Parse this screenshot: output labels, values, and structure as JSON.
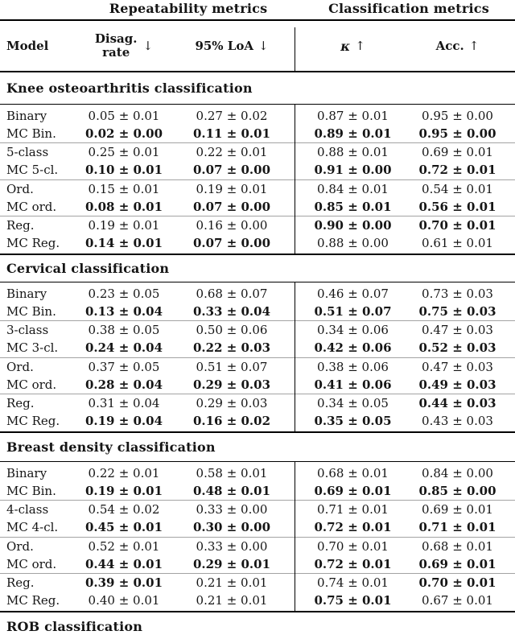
{
  "header": {
    "repeatability_label": "Repeatability metrics",
    "classification_label": "Classification metrics",
    "model_label": "Model",
    "disag_line1": "Disag.",
    "disag_line2": "rate",
    "down_arrow": "↓",
    "loa_label": "95% LoA",
    "kappa_label": "κ",
    "up_arrow": "↑",
    "acc_label": "Acc."
  },
  "sections": [
    {
      "title": "Knee osteoarthritis classification",
      "rows": [
        {
          "model": "Binary",
          "values": [
            "0.05 ± 0.01",
            "0.27 ± 0.02",
            "0.87 ± 0.01",
            "0.95 ± 0.00"
          ],
          "bold": [
            false,
            false,
            false,
            false
          ]
        },
        {
          "model": "MC Bin.",
          "values": [
            "0.02 ± 0.00",
            "0.11 ± 0.01",
            "0.89 ± 0.01",
            "0.95 ± 0.00"
          ],
          "bold": [
            true,
            true,
            true,
            true
          ]
        },
        {
          "model": "5-class",
          "values": [
            "0.25 ± 0.01",
            "0.22 ± 0.01",
            "0.88 ± 0.01",
            "0.69 ± 0.01"
          ],
          "bold": [
            false,
            false,
            false,
            false
          ]
        },
        {
          "model": "MC 5-cl.",
          "values": [
            "0.10 ± 0.01",
            "0.07 ± 0.00",
            "0.91 ± 0.00",
            "0.72 ± 0.01"
          ],
          "bold": [
            true,
            true,
            true,
            true
          ]
        },
        {
          "model": "Ord.",
          "values": [
            "0.15 ± 0.01",
            "0.19 ± 0.01",
            "0.84 ± 0.01",
            "0.54 ± 0.01"
          ],
          "bold": [
            false,
            false,
            false,
            false
          ]
        },
        {
          "model": "MC ord.",
          "values": [
            "0.08 ± 0.01",
            "0.07 ± 0.00",
            "0.85 ± 0.01",
            "0.56 ± 0.01"
          ],
          "bold": [
            true,
            true,
            true,
            true
          ]
        },
        {
          "model": "Reg.",
          "values": [
            "0.19 ± 0.01",
            "0.16 ± 0.00",
            "0.90 ± 0.00",
            "0.70 ± 0.01"
          ],
          "bold": [
            false,
            false,
            true,
            true
          ]
        },
        {
          "model": "MC Reg.",
          "values": [
            "0.14 ± 0.01",
            "0.07 ± 0.00",
            "0.88 ± 0.00",
            "0.61 ± 0.01"
          ],
          "bold": [
            true,
            true,
            false,
            false
          ]
        }
      ]
    },
    {
      "title": "Cervical classification",
      "rows": [
        {
          "model": "Binary",
          "values": [
            "0.23 ± 0.05",
            "0.68 ± 0.07",
            "0.46 ± 0.07",
            "0.73 ± 0.03"
          ],
          "bold": [
            false,
            false,
            false,
            false
          ]
        },
        {
          "model": "MC Bin.",
          "values": [
            "0.13 ± 0.04",
            "0.33 ± 0.04",
            "0.51 ± 0.07",
            "0.75 ± 0.03"
          ],
          "bold": [
            true,
            true,
            true,
            true
          ]
        },
        {
          "model": "3-class",
          "values": [
            "0.38 ± 0.05",
            "0.50 ± 0.06",
            "0.34 ± 0.06",
            "0.47 ± 0.03"
          ],
          "bold": [
            false,
            false,
            false,
            false
          ]
        },
        {
          "model": "MC 3-cl.",
          "values": [
            "0.24 ± 0.04",
            "0.22 ± 0.03",
            "0.42 ± 0.06",
            "0.52 ± 0.03"
          ],
          "bold": [
            true,
            true,
            true,
            true
          ]
        },
        {
          "model": "Ord.",
          "values": [
            "0.37 ± 0.05",
            "0.51 ± 0.07",
            "0.38 ± 0.06",
            "0.47 ± 0.03"
          ],
          "bold": [
            false,
            false,
            false,
            false
          ]
        },
        {
          "model": "MC ord.",
          "values": [
            "0.28 ± 0.04",
            "0.29 ± 0.03",
            "0.41 ± 0.06",
            "0.49 ± 0.03"
          ],
          "bold": [
            true,
            true,
            true,
            true
          ]
        },
        {
          "model": "Reg.",
          "values": [
            "0.31 ± 0.04",
            "0.29 ± 0.03",
            "0.34 ± 0.05",
            "0.44 ± 0.03"
          ],
          "bold": [
            false,
            false,
            false,
            true
          ]
        },
        {
          "model": "MC Reg.",
          "values": [
            "0.19 ± 0.04",
            "0.16 ± 0.02",
            "0.35 ± 0.05",
            "0.43 ± 0.03"
          ],
          "bold": [
            true,
            true,
            true,
            false
          ]
        }
      ]
    },
    {
      "title": "Breast density classification",
      "rows": [
        {
          "model": "Binary",
          "values": [
            "0.22 ± 0.01",
            "0.58 ± 0.01",
            "0.68 ± 0.01",
            "0.84 ± 0.00"
          ],
          "bold": [
            false,
            false,
            false,
            false
          ]
        },
        {
          "model": "MC Bin.",
          "values": [
            "0.19 ± 0.01",
            "0.48 ± 0.01",
            "0.69 ± 0.01",
            "0.85 ± 0.00"
          ],
          "bold": [
            true,
            true,
            true,
            true
          ]
        },
        {
          "model": "4-class",
          "values": [
            "0.54 ± 0.02",
            "0.33 ± 0.00",
            "0.71 ± 0.01",
            "0.69 ± 0.01"
          ],
          "bold": [
            false,
            false,
            false,
            false
          ]
        },
        {
          "model": "MC 4-cl.",
          "values": [
            "0.45 ± 0.01",
            "0.30 ± 0.00",
            "0.72 ± 0.01",
            "0.71 ± 0.01"
          ],
          "bold": [
            true,
            true,
            true,
            true
          ]
        },
        {
          "model": "Ord.",
          "values": [
            "0.52 ± 0.01",
            "0.33 ± 0.00",
            "0.70 ± 0.01",
            "0.68 ± 0.01"
          ],
          "bold": [
            false,
            false,
            false,
            false
          ]
        },
        {
          "model": "MC ord.",
          "values": [
            "0.44 ± 0.01",
            "0.29 ± 0.01",
            "0.72 ± 0.01",
            "0.69 ± 0.01"
          ],
          "bold": [
            true,
            true,
            true,
            true
          ]
        },
        {
          "model": "Reg.",
          "values": [
            "0.39 ± 0.01",
            "0.21 ± 0.01",
            "0.74 ± 0.01",
            "0.70 ± 0.01"
          ],
          "bold": [
            true,
            false,
            false,
            true
          ]
        },
        {
          "model": "MC Reg.",
          "values": [
            "0.40 ± 0.01",
            "0.21 ± 0.01",
            "0.75 ± 0.01",
            "0.67 ± 0.01"
          ],
          "bold": [
            false,
            false,
            true,
            false
          ]
        }
      ]
    },
    {
      "title": "ROB classification",
      "rows": []
    }
  ],
  "colors": {
    "rule_black": "#000000",
    "rule_gray": "#a3a3a3",
    "text": "#151515",
    "background": "#ffffff"
  }
}
